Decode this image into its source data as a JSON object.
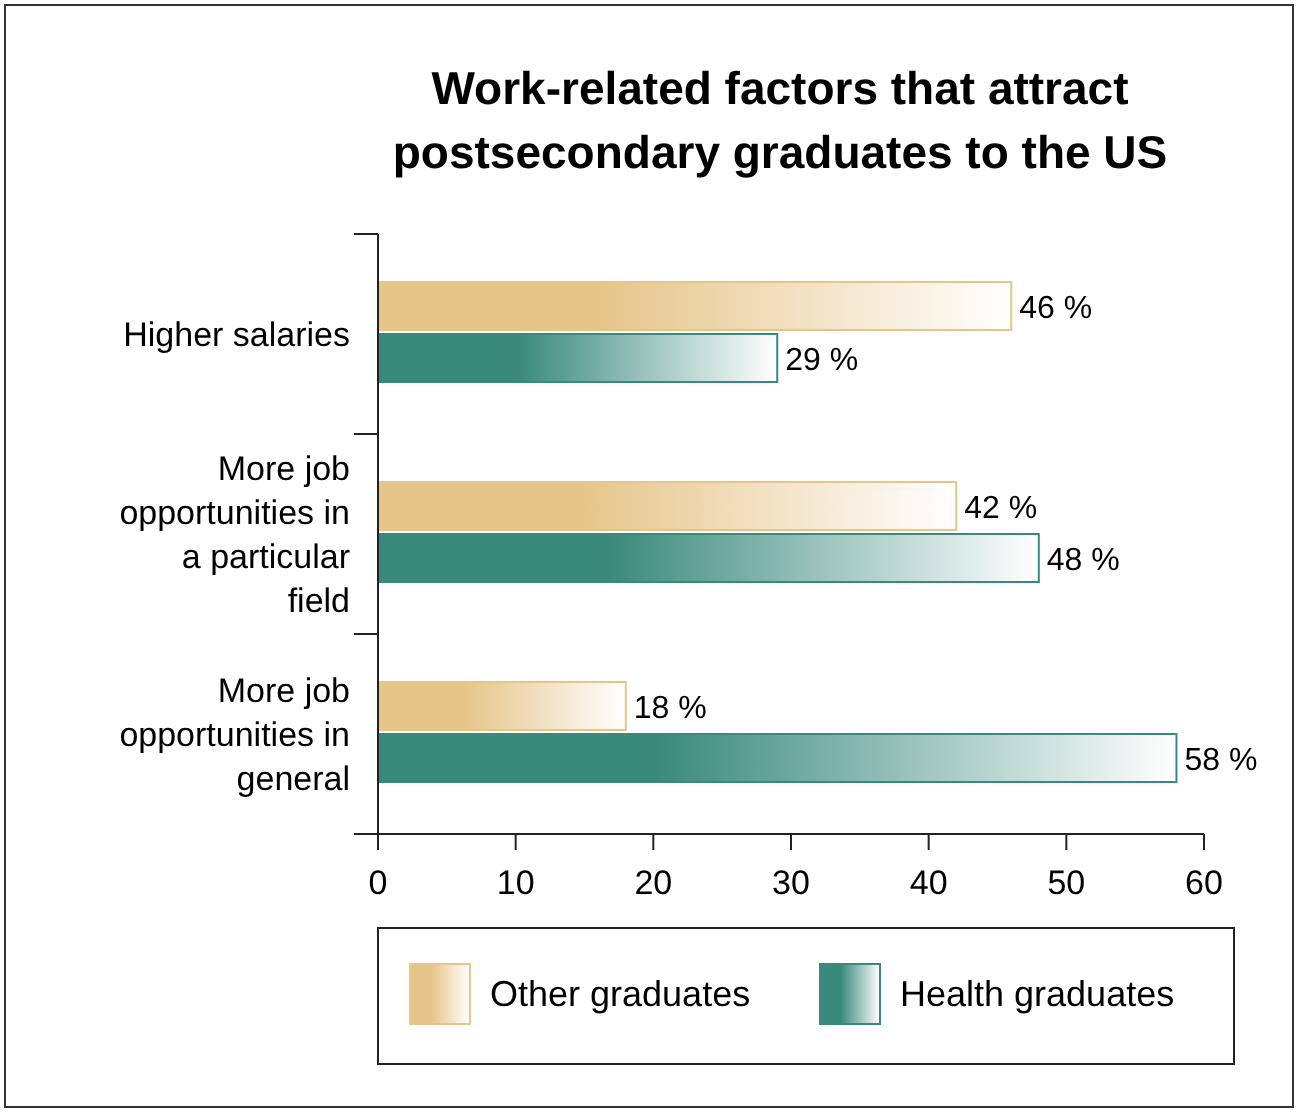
{
  "chart_data": {
    "type": "bar",
    "orientation": "horizontal",
    "title": "Work-related factors that attract postsecondary graduates to the US",
    "categories": [
      "Higher salaries",
      "More job opportunities in a particular field",
      "More job opportunities in general"
    ],
    "series": [
      {
        "name": "Other graduates",
        "color": "#e6c58a",
        "values": [
          46,
          42,
          18
        ],
        "value_labels": [
          "46 %",
          "42 %",
          "18 %"
        ]
      },
      {
        "name": "Health graduates",
        "color": "#3a8a7c",
        "values": [
          29,
          48,
          58
        ],
        "value_labels": [
          "29 %",
          "48 %",
          "58 %"
        ]
      }
    ],
    "xlim": [
      0,
      60
    ],
    "xticks": [
      0,
      10,
      20,
      30,
      40,
      50,
      60
    ],
    "legend": "bottom",
    "grid": false
  }
}
